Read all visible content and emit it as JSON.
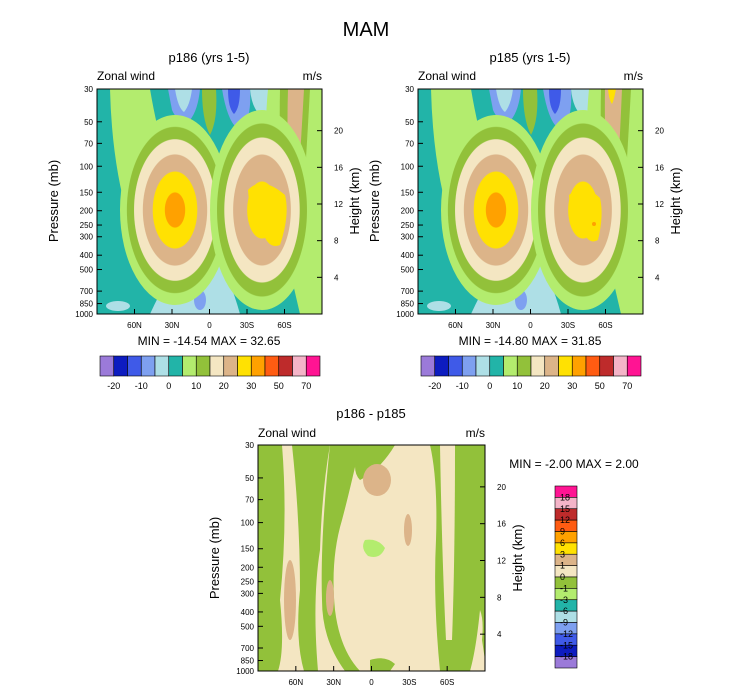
{
  "figure_title": "MAM",
  "colors": {
    "top_scale": [
      "#9b7ad9",
      "#0d1cc0",
      "#3f5ae8",
      "#7ea0f0",
      "#aedfe6",
      "#22b4a8",
      "#b3ec6e",
      "#92c13a",
      "#f4e6c2",
      "#dcb489",
      "#ffe102",
      "#ffa100",
      "#ff5c12",
      "#be2b2b",
      "#f4b4c8",
      "#ff1493"
    ],
    "diff_scale": [
      "#9b7ad9",
      "#0d1cc0",
      "#3f5ae8",
      "#7ea0f0",
      "#aedfe6",
      "#22b4a8",
      "#b3ec6e",
      "#92c13a",
      "#f4e6c2",
      "#dcb489",
      "#ffe102",
      "#ffa100",
      "#ff5c12",
      "#be2b2b",
      "#f4b4c8",
      "#ff1493"
    ]
  },
  "chart_data": [
    {
      "type": "heatmap",
      "title": "p186 (yrs 1-5)",
      "subtitle_left": "Zonal wind",
      "subtitle_right": "m/s",
      "ylabel": "Pressure (mb)",
      "ylabel_right": "Height (km)",
      "x_ticks": [
        "60N",
        "30N",
        "0",
        "30S",
        "60S"
      ],
      "y_ticks": [
        "30",
        "50",
        "70",
        "100",
        "150",
        "200",
        "250",
        "300",
        "400",
        "500",
        "700",
        "850",
        "1000"
      ],
      "y_ticks_right": [
        "20",
        "16",
        "12",
        "8",
        "4"
      ],
      "stats": "MIN = -14.54  MAX =  32.65",
      "colorbar_labels": [
        "-20",
        "-10",
        "0",
        "10",
        "20",
        "30",
        "50",
        "70"
      ],
      "jets": [
        {
          "lat": 27,
          "level": 200,
          "max": 32.65
        },
        {
          "lat": -38,
          "level": 200,
          "max": 26
        }
      ]
    },
    {
      "type": "heatmap",
      "title": "p185 (yrs 1-5)",
      "subtitle_left": "Zonal wind",
      "subtitle_right": "m/s",
      "ylabel": "Pressure (mb)",
      "ylabel_right": "Height (km)",
      "x_ticks": [
        "60N",
        "30N",
        "0",
        "30S",
        "60S"
      ],
      "y_ticks": [
        "30",
        "50",
        "70",
        "100",
        "150",
        "200",
        "250",
        "300",
        "400",
        "500",
        "700",
        "850",
        "1000"
      ],
      "y_ticks_right": [
        "20",
        "16",
        "12",
        "8",
        "4"
      ],
      "stats": "MIN = -14.80  MAX =  31.85",
      "colorbar_labels": [
        "-20",
        "-10",
        "0",
        "10",
        "20",
        "30",
        "50",
        "70"
      ],
      "jets": [
        {
          "lat": 27,
          "level": 200,
          "max": 31.85
        },
        {
          "lat": -38,
          "level": 200,
          "max": 26
        }
      ]
    },
    {
      "type": "heatmap",
      "title": "p186 - p185",
      "subtitle_left": "Zonal wind",
      "subtitle_right": "m/s",
      "ylabel": "Pressure (mb)",
      "ylabel_right": "Height (km)",
      "x_ticks": [
        "60N",
        "30N",
        "0",
        "30S",
        "60S"
      ],
      "y_ticks": [
        "30",
        "50",
        "70",
        "100",
        "150",
        "200",
        "250",
        "300",
        "400",
        "500",
        "700",
        "850",
        "1000"
      ],
      "y_ticks_right": [
        "20",
        "16",
        "12",
        "8",
        "4"
      ],
      "stats": "MIN =  -2.00  MAX =   2.00",
      "colorbar_labels": [
        "18",
        "15",
        "12",
        "9",
        "6",
        "3",
        "1",
        "0",
        "-1",
        "-3",
        "-6",
        "-9",
        "-12",
        "-15",
        "-18"
      ]
    }
  ]
}
